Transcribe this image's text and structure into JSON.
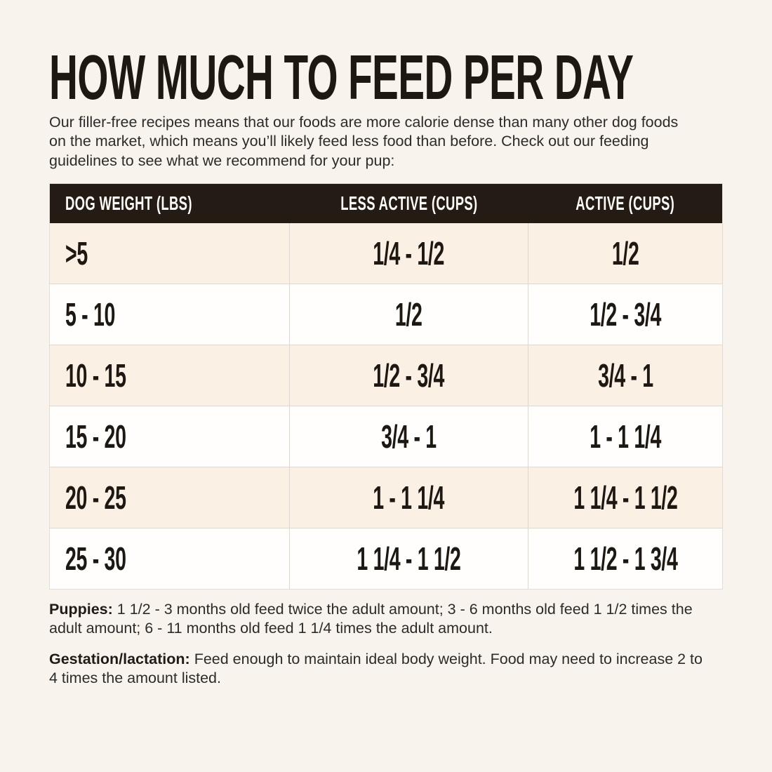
{
  "page": {
    "title": "HOW MUCH TO FEED PER DAY",
    "intro": "Our filler-free recipes means that our foods are more calorie dense than many other dog foods on the market, which means you’ll likely feed less food than before. Check out our feeding guidelines to see what we recommend for your pup:"
  },
  "table": {
    "columns": [
      "DOG WEIGHT (LBS)",
      "LESS ACTIVE (CUPS)",
      "ACTIVE (CUPS)"
    ],
    "rows": [
      {
        "weight": ">5",
        "less_active": "1/4 - 1/2",
        "active": "1/2"
      },
      {
        "weight": "5 - 10",
        "less_active": "1/2",
        "active": "1/2 - 3/4"
      },
      {
        "weight": "10 - 15",
        "less_active": "1/2 - 3/4",
        "active": "3/4 - 1"
      },
      {
        "weight": "15 - 20",
        "less_active": "3/4 - 1",
        "active": "1 - 1 1/4"
      },
      {
        "weight": "20 - 25",
        "less_active": "1 - 1 1/4",
        "active": "1 1/4 - 1 1/2"
      },
      {
        "weight": "25 - 30",
        "less_active": "1 1/4 - 1 1/2",
        "active": "1 1/2 - 1 3/4"
      }
    ]
  },
  "notes": [
    {
      "label": "Puppies:",
      "text": "1 1/2 - 3 months old feed twice the adult amount; 3 - 6 months old feed 1 1/2 times the adult amount; 6 - 11 months old feed 1 1/4 times the adult amount."
    },
    {
      "label": "Gestation/lactation:",
      "text": "Feed enough to maintain ideal body weight. Food may need to increase 2 to 4 times the amount listed."
    }
  ],
  "colors": {
    "page_background": "#f8f3ec",
    "header_background": "#241b15",
    "header_text": "#fdfbf7",
    "row_cream": "#faf0e4",
    "row_white": "#fffefd",
    "text_dark": "#1e1813",
    "body_text": "#2c2b29",
    "divider": "#ddd8d0"
  }
}
